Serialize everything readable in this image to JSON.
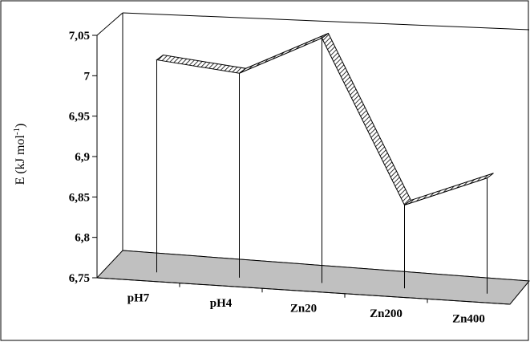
{
  "chart_data": {
    "type": "line",
    "style": "3d-ribbon",
    "categories": [
      "pH7",
      "pH4",
      "Zn20",
      "Zn200",
      "Zn400"
    ],
    "series": [
      {
        "values": [
          7.01,
          7.0,
          7.05,
          6.85,
          6.89
        ]
      }
    ],
    "ylabel": "E (kJ mol-1)",
    "ylabel_parts": {
      "main": "E (kJ mol",
      "superscript": "-1",
      "close": ")"
    },
    "ylim": [
      6.75,
      7.05
    ],
    "ytick_labels": [
      "6,75",
      "6,8",
      "6,85",
      "6,9",
      "6,95",
      "7",
      "7,05"
    ],
    "ytick_values": [
      6.75,
      6.8,
      6.85,
      6.9,
      6.95,
      7.0,
      7.05
    ],
    "grid": false,
    "legend": "none",
    "colors": {
      "floor": "#c0c0c0",
      "ribbon_fill": "#ffffff",
      "ribbon_hatch": "#000000",
      "line": "#000000"
    }
  }
}
